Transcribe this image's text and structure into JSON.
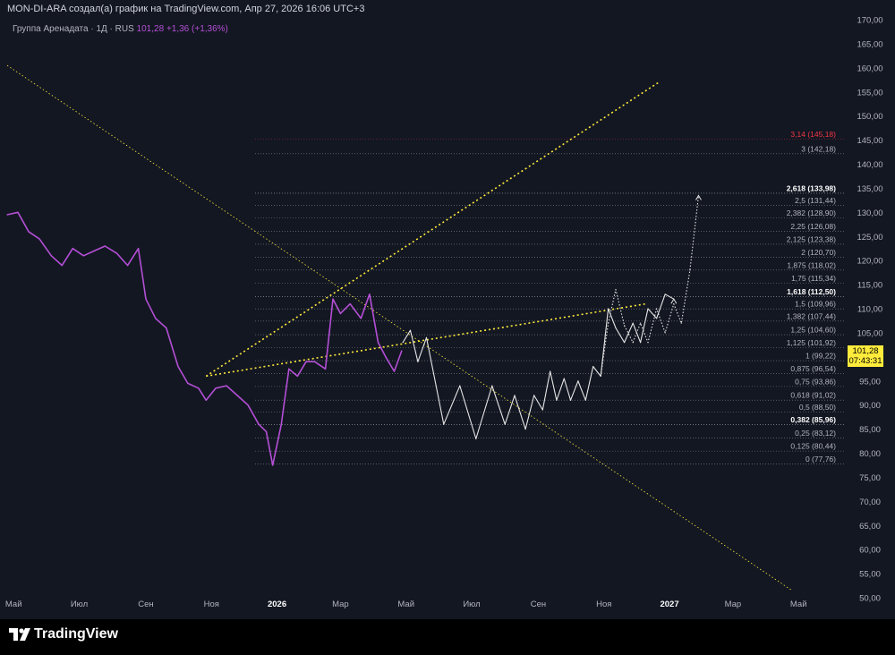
{
  "header": {
    "attribution": "MON-DI-ARA создал(а) график на TradingView.com, Апр 27, 2026 16:06 UTC+3"
  },
  "legend": {
    "symbol": "Группа Аренадата · 1Д · RUS",
    "last": "101,28",
    "change": "+1,36 (+1,36%)"
  },
  "price_tag": {
    "price": "101,28",
    "countdown": "07:43:31"
  },
  "footer": {
    "logo_text": "TradingView"
  },
  "colors": {
    "background": "#131722",
    "price_line": "#b44fd6",
    "projection": "#e6e6e6",
    "trendline": "#ffeb3b",
    "fib_level": "#b2b5be",
    "fib_top": "#f23645",
    "price_tag": "#ffeb3b"
  },
  "chart_data": {
    "type": "line",
    "title": "",
    "xlabel": "",
    "ylabel": "",
    "ylim": [
      50,
      170
    ],
    "y_ticks": [
      "50,00",
      "55,00",
      "60,00",
      "65,00",
      "70,00",
      "75,00",
      "80,00",
      "85,00",
      "90,00",
      "95,00",
      "100,00",
      "105,00",
      "110,00",
      "115,00",
      "120,00",
      "125,00",
      "130,00",
      "135,00",
      "140,00",
      "145,00",
      "150,00",
      "155,00",
      "160,00",
      "165,00",
      "170,00"
    ],
    "x_ticks": [
      "Май",
      "Июл",
      "Сен",
      "Ноя",
      "2026",
      "Мар",
      "Май",
      "Июл",
      "Сен",
      "Ноя",
      "2027",
      "Мар",
      "Май"
    ],
    "x_tick_bold": [
      "2026",
      "2027"
    ],
    "series": [
      {
        "type": "price",
        "x": [
          "2025-04-25",
          "2025-05-05",
          "2025-05-15",
          "2025-05-25",
          "2025-06-05",
          "2025-06-15",
          "2025-06-25",
          "2025-07-05",
          "2025-07-15",
          "2025-07-25",
          "2025-08-05",
          "2025-08-15",
          "2025-08-25",
          "2025-09-01",
          "2025-09-10",
          "2025-09-20",
          "2025-10-01",
          "2025-10-10",
          "2025-10-20",
          "2025-10-27",
          "2025-11-05",
          "2025-11-15",
          "2025-11-25",
          "2025-12-05",
          "2025-12-15",
          "2025-12-22",
          "2025-12-28",
          "2026-01-05",
          "2026-01-12",
          "2026-01-20",
          "2026-01-28",
          "2026-02-05",
          "2026-02-15",
          "2026-02-22",
          "2026-03-01",
          "2026-03-10",
          "2026-03-20",
          "2026-03-28",
          "2026-04-05",
          "2026-04-12",
          "2026-04-20",
          "2026-04-27"
        ],
        "y": [
          129.5,
          130.0,
          126.0,
          124.5,
          121.0,
          119.0,
          122.5,
          121.0,
          122.0,
          123.0,
          121.5,
          119.0,
          122.5,
          112.0,
          108.0,
          106.0,
          98.0,
          94.5,
          93.5,
          91.0,
          93.5,
          94.0,
          92.0,
          90.0,
          86.0,
          84.5,
          77.5,
          86.0,
          97.5,
          96.0,
          99.0,
          99.0,
          97.5,
          112.0,
          109.0,
          111.0,
          108.0,
          113.0,
          103.0,
          100.0,
          97.0,
          101.28
        ]
      },
      {
        "type": "projection",
        "x": [
          "2026-04-28",
          "2026-05-05",
          "2026-05-12",
          "2026-05-20",
          "2026-06-05",
          "2026-06-20",
          "2026-07-05",
          "2026-07-20",
          "2026-08-01",
          "2026-08-10",
          "2026-08-20",
          "2026-08-28",
          "2026-09-05",
          "2026-09-12",
          "2026-09-18",
          "2026-09-25",
          "2026-10-01",
          "2026-10-08",
          "2026-10-15",
          "2026-10-22",
          "2026-10-29"
        ],
        "y": [
          103.0,
          105.5,
          99.0,
          104.0,
          86.0,
          94.0,
          83.0,
          94.0,
          86.0,
          92.0,
          85.0,
          92.0,
          89.0,
          97.0,
          91.0,
          95.5,
          91.0,
          95.0,
          91.0,
          98.0,
          96.0
        ]
      },
      {
        "type": "projection",
        "x": [
          "2026-10-29",
          "2026-11-05",
          "2026-11-12",
          "2026-11-20",
          "2026-11-28",
          "2026-12-05",
          "2026-12-12",
          "2026-12-20",
          "2026-12-28",
          "2027-01-05"
        ],
        "y": [
          96.0,
          110.0,
          106.0,
          103.0,
          107.0,
          103.0,
          110.0,
          108.0,
          113.0,
          112.0
        ]
      },
      {
        "type": "projection_dotted",
        "x": [
          "2026-10-29",
          "2026-11-05",
          "2026-11-12",
          "2026-11-20",
          "2026-11-28",
          "2026-12-05",
          "2026-12-12",
          "2026-12-20",
          "2026-12-28",
          "2027-01-05",
          "2027-01-12",
          "2027-01-20",
          "2027-01-28"
        ],
        "y": [
          96.0,
          107.0,
          114.0,
          106.5,
          103.0,
          107.0,
          103.0,
          110.0,
          105.0,
          111.0,
          107.0,
          118.0,
          133.5
        ]
      }
    ],
    "trendlines": [
      {
        "style": "dotted-yellow",
        "x": [
          "2025-04-25",
          "2027-04-25"
        ],
        "y": [
          160.5,
          51.5
        ]
      },
      {
        "style": "dotted-yellow",
        "x": [
          "2025-10-27",
          "2026-12-22"
        ],
        "y": [
          96.0,
          157.0
        ]
      },
      {
        "style": "dotted-yellow",
        "x": [
          "2025-10-27",
          "2026-12-10"
        ],
        "y": [
          96.0,
          111.0
        ]
      }
    ],
    "fib_levels": [
      {
        "ratio": "0",
        "price": 77.76,
        "label": "0 (77,76)"
      },
      {
        "ratio": "0,125",
        "price": 80.44,
        "label": "0,125 (80,44)"
      },
      {
        "ratio": "0,25",
        "price": 83.12,
        "label": "0,25 (83,12)"
      },
      {
        "ratio": "0,382",
        "price": 85.96,
        "label": "0,382 (85,96)",
        "bold": true
      },
      {
        "ratio": "0,5",
        "price": 88.5,
        "label": "0,5 (88,50)"
      },
      {
        "ratio": "0,618",
        "price": 91.02,
        "label": "0,618 (91,02)"
      },
      {
        "ratio": "0,75",
        "price": 93.86,
        "label": "0,75 (93,86)"
      },
      {
        "ratio": "0,875",
        "price": 96.54,
        "label": "0,875 (96,54)"
      },
      {
        "ratio": "1",
        "price": 99.22,
        "label": "1 (99,22)"
      },
      {
        "ratio": "1,125",
        "price": 101.92,
        "label": "1,125 (101,92)"
      },
      {
        "ratio": "1,25",
        "price": 104.6,
        "label": "1,25 (104,60)"
      },
      {
        "ratio": "1,382",
        "price": 107.44,
        "label": "1,382 (107,44)"
      },
      {
        "ratio": "1,5",
        "price": 109.96,
        "label": "1,5 (109,96)"
      },
      {
        "ratio": "1,618",
        "price": 112.5,
        "label": "1,618 (112,50)",
        "bold": true
      },
      {
        "ratio": "1,75",
        "price": 115.34,
        "label": "1,75 (115,34)"
      },
      {
        "ratio": "1,875",
        "price": 118.02,
        "label": "1,875 (118,02)"
      },
      {
        "ratio": "2",
        "price": 120.7,
        "label": "2 (120,70)"
      },
      {
        "ratio": "2,125",
        "price": 123.38,
        "label": "2,125 (123,38)"
      },
      {
        "ratio": "2,25",
        "price": 126.08,
        "label": "2,25 (126,08)"
      },
      {
        "ratio": "2,382",
        "price": 128.9,
        "label": "2,382 (128,90)"
      },
      {
        "ratio": "2,5",
        "price": 131.44,
        "label": "2,5 (131,44)"
      },
      {
        "ratio": "2,618",
        "price": 133.98,
        "label": "2,618 (133,98)",
        "bold": true
      },
      {
        "ratio": "3",
        "price": 142.18,
        "label": "3 (142,18)"
      },
      {
        "ratio": "3,14",
        "price": 145.18,
        "label": "3,14 (145,18)",
        "top": true
      }
    ]
  }
}
